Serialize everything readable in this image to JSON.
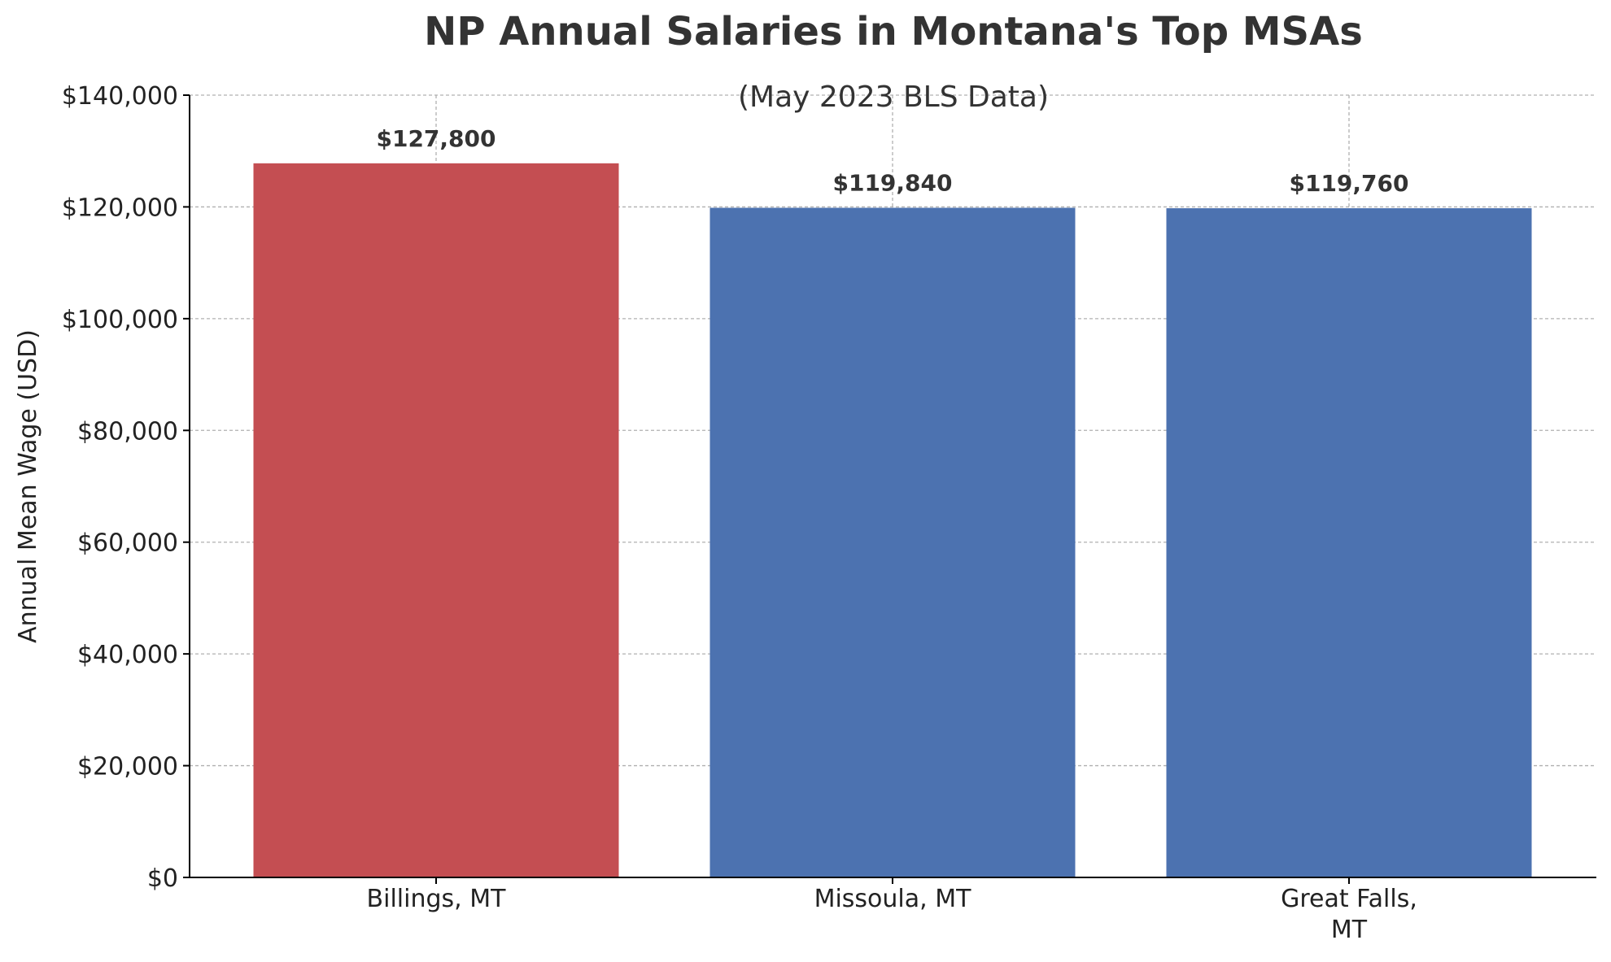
{
  "chart_data": {
    "type": "bar",
    "title": "NP Annual Salaries in Montana's Top MSAs",
    "subtitle": "(May 2023 BLS Data)",
    "xlabel": "",
    "ylabel": "Annual Mean Wage (USD)",
    "categories": [
      "Billings, MT",
      "Missoula, MT",
      "Great Falls, MT"
    ],
    "category_lines": [
      [
        "Billings, MT"
      ],
      [
        "Missoula, MT"
      ],
      [
        "Great Falls,",
        "MT"
      ]
    ],
    "values": [
      127800,
      119840,
      119760
    ],
    "value_labels": [
      "$127,800",
      "$119,840",
      "$119,760"
    ],
    "bar_colors": [
      "#c44e52",
      "#4c72b0",
      "#4c72b0"
    ],
    "ylim": [
      0,
      140000
    ],
    "yticks": [
      0,
      20000,
      40000,
      60000,
      80000,
      100000,
      120000,
      140000
    ],
    "ytick_labels": [
      "$0",
      "$20,000",
      "$40,000",
      "$60,000",
      "$80,000",
      "$100,000",
      "$120,000",
      "$140,000"
    ],
    "grid": true,
    "colors": {
      "text": "#333333",
      "tick_text": "#222222",
      "grid": "#b0b0b0",
      "axis": "#000000"
    }
  }
}
